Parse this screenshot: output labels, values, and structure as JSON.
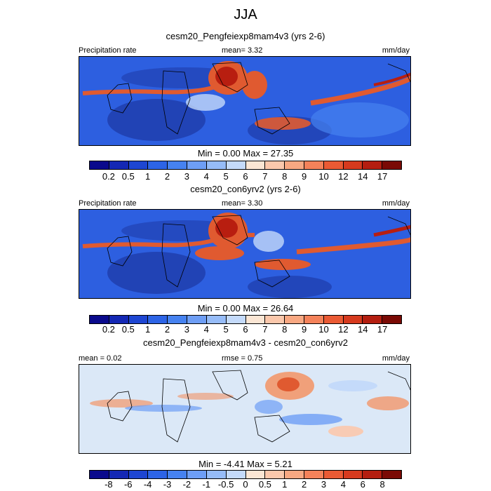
{
  "page_title": "JJA",
  "panels": [
    {
      "title": "cesm20_Pengfeiexp8mam4v3 (yrs 2-6)",
      "left_label": "Precipitation rate",
      "center_label": "mean=   3.32",
      "right_label": "mm/day",
      "minmax": "Min =   0.00 Max =  27.35",
      "mean": 3.32,
      "min": 0.0,
      "max": 27.35
    },
    {
      "title": "cesm20_con6yrv2 (yrs 2-6)",
      "left_label": "Precipitation rate",
      "center_label": "mean=   3.30",
      "right_label": "mm/day",
      "minmax": "Min =   0.00 Max =  26.64",
      "mean": 3.3,
      "min": 0.0,
      "max": 26.64
    },
    {
      "title": "cesm20_Pengfeiexp8mam4v3 - cesm20_con6yrv2",
      "left_label": "mean =   0.02",
      "center_label": "rmse =   0.75",
      "right_label": "mm/day",
      "minmax": "Min =  -4.41 Max =   5.21",
      "mean": 0.02,
      "rmse": 0.75,
      "min": -4.41,
      "max": 5.21
    }
  ],
  "colorbars": {
    "precip": {
      "ticks": [
        "0.2",
        "0.5",
        "1",
        "2",
        "3",
        "4",
        "5",
        "6",
        "7",
        "8",
        "9",
        "10",
        "12",
        "14",
        "17"
      ],
      "colors": [
        "#0a0a8c",
        "#1428b4",
        "#1e46d2",
        "#2d64e6",
        "#4682f0",
        "#6e9ef5",
        "#96bcf8",
        "#c4dafa",
        "#fbe6d4",
        "#fbc8ac",
        "#f8a882",
        "#f4825a",
        "#ea5a34",
        "#d63a1e",
        "#b41e10",
        "#7a0a05"
      ]
    },
    "diff": {
      "ticks": [
        "-8",
        "-6",
        "-4",
        "-3",
        "-2",
        "-1",
        "-0.5",
        "0",
        "0.5",
        "1",
        "2",
        "3",
        "4",
        "6",
        "8"
      ],
      "colors": [
        "#0a0a8c",
        "#1428b4",
        "#1e46d2",
        "#2d64e6",
        "#4682f0",
        "#6e9ef5",
        "#96bcf8",
        "#c4dafa",
        "#fbe6d4",
        "#fbc8ac",
        "#f8a882",
        "#f4825a",
        "#ea5a34",
        "#d63a1e",
        "#b41e10",
        "#7a0a05"
      ]
    }
  },
  "map_style": {
    "precip_background": "#2d5fe0",
    "precip_dry": "#1e3caa",
    "precip_wet": "#e05a30",
    "precip_core": "#b81e10",
    "diff_background": "#dbe8f7",
    "diff_pos": "#f0a07a",
    "diff_neg": "#6e9ef5",
    "coast": "#000000"
  }
}
